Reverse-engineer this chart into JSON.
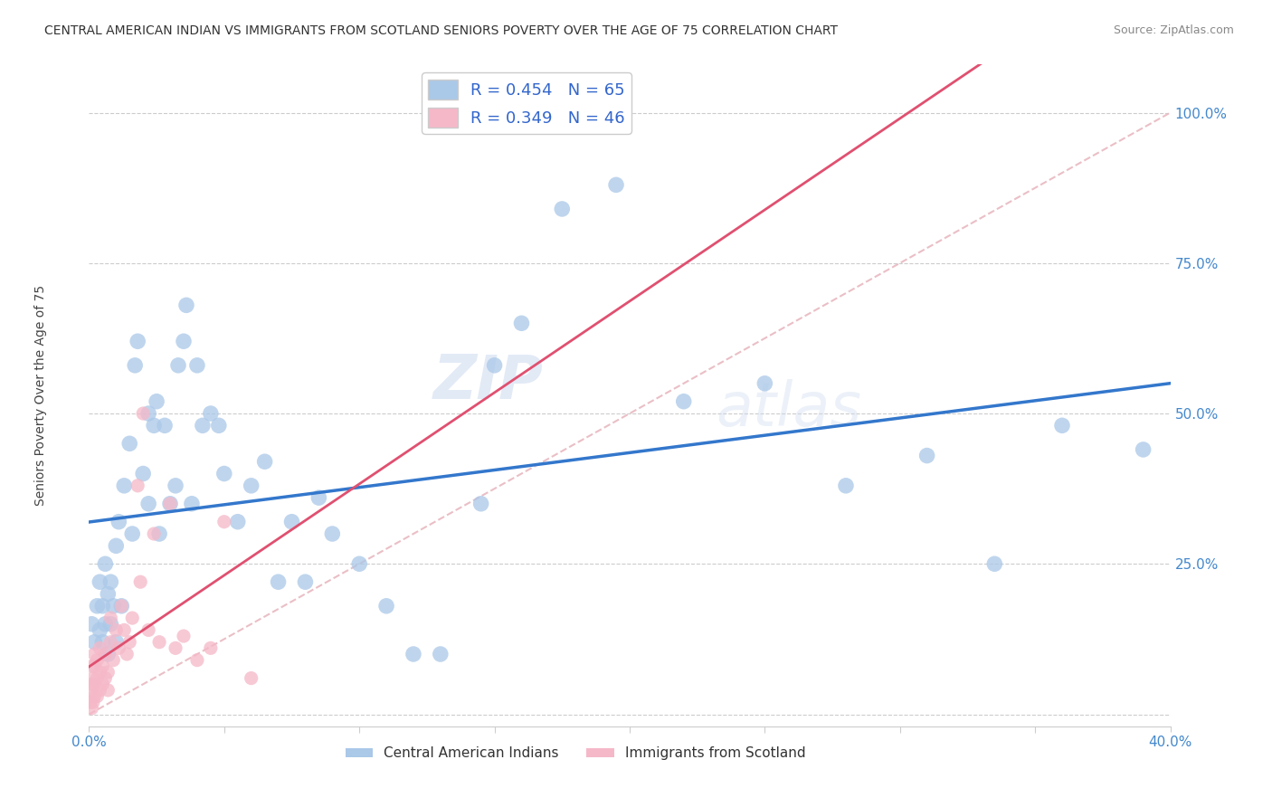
{
  "title": "CENTRAL AMERICAN INDIAN VS IMMIGRANTS FROM SCOTLAND SENIORS POVERTY OVER THE AGE OF 75 CORRELATION CHART",
  "source": "Source: ZipAtlas.com",
  "ylabel": "Seniors Poverty Over the Age of 75",
  "xlim": [
    0.0,
    0.4
  ],
  "ylim": [
    -0.02,
    1.08
  ],
  "yticks": [
    0.0,
    0.25,
    0.5,
    0.75,
    1.0
  ],
  "ytick_labels": [
    "",
    "25.0%",
    "50.0%",
    "75.0%",
    "100.0%"
  ],
  "xticks": [
    0.0,
    0.05,
    0.1,
    0.15,
    0.2,
    0.25,
    0.3,
    0.35,
    0.4
  ],
  "legend1_color": "#aac8e8",
  "legend2_color": "#f5b8c8",
  "line1_color": "#3377cc",
  "line2_color": "#e05070",
  "dot1_color": "#aac8e8",
  "dot2_color": "#f5b8c8",
  "R1": 0.454,
  "N1": 65,
  "R2": 0.349,
  "N2": 46,
  "label1": "Central American Indians",
  "label2": "Immigrants from Scotland",
  "watermark_zip": "ZIP",
  "watermark_atlas": "atlas",
  "diag_color": "#e8b8c0",
  "blue_x": [
    0.001,
    0.002,
    0.003,
    0.004,
    0.004,
    0.005,
    0.005,
    0.006,
    0.006,
    0.007,
    0.007,
    0.008,
    0.008,
    0.009,
    0.01,
    0.01,
    0.011,
    0.012,
    0.013,
    0.015,
    0.016,
    0.017,
    0.018,
    0.02,
    0.022,
    0.022,
    0.024,
    0.025,
    0.026,
    0.028,
    0.03,
    0.032,
    0.033,
    0.035,
    0.036,
    0.038,
    0.04,
    0.042,
    0.045,
    0.048,
    0.05,
    0.055,
    0.06,
    0.065,
    0.07,
    0.075,
    0.08,
    0.085,
    0.09,
    0.1,
    0.11,
    0.12,
    0.13,
    0.145,
    0.15,
    0.16,
    0.175,
    0.195,
    0.22,
    0.25,
    0.28,
    0.31,
    0.335,
    0.36,
    0.39
  ],
  "blue_y": [
    0.15,
    0.12,
    0.18,
    0.14,
    0.22,
    0.18,
    0.12,
    0.15,
    0.25,
    0.1,
    0.2,
    0.15,
    0.22,
    0.18,
    0.12,
    0.28,
    0.32,
    0.18,
    0.38,
    0.45,
    0.3,
    0.58,
    0.62,
    0.4,
    0.5,
    0.35,
    0.48,
    0.52,
    0.3,
    0.48,
    0.35,
    0.38,
    0.58,
    0.62,
    0.68,
    0.35,
    0.58,
    0.48,
    0.5,
    0.48,
    0.4,
    0.32,
    0.38,
    0.42,
    0.22,
    0.32,
    0.22,
    0.36,
    0.3,
    0.25,
    0.18,
    0.1,
    0.1,
    0.35,
    0.58,
    0.65,
    0.84,
    0.88,
    0.52,
    0.55,
    0.38,
    0.43,
    0.25,
    0.48,
    0.44
  ],
  "pink_x": [
    0.0005,
    0.0005,
    0.001,
    0.001,
    0.001,
    0.0015,
    0.0015,
    0.002,
    0.002,
    0.002,
    0.002,
    0.003,
    0.003,
    0.003,
    0.004,
    0.004,
    0.004,
    0.005,
    0.005,
    0.006,
    0.006,
    0.007,
    0.007,
    0.008,
    0.008,
    0.009,
    0.01,
    0.011,
    0.012,
    0.013,
    0.014,
    0.015,
    0.016,
    0.018,
    0.019,
    0.02,
    0.022,
    0.024,
    0.026,
    0.03,
    0.032,
    0.035,
    0.04,
    0.045,
    0.05,
    0.06
  ],
  "pink_y": [
    0.02,
    0.04,
    0.01,
    0.05,
    0.08,
    0.02,
    0.06,
    0.03,
    0.05,
    0.08,
    0.1,
    0.03,
    0.06,
    0.09,
    0.04,
    0.07,
    0.11,
    0.05,
    0.08,
    0.06,
    0.1,
    0.04,
    0.07,
    0.12,
    0.16,
    0.09,
    0.14,
    0.11,
    0.18,
    0.14,
    0.1,
    0.12,
    0.16,
    0.38,
    0.22,
    0.5,
    0.14,
    0.3,
    0.12,
    0.35,
    0.11,
    0.13,
    0.09,
    0.11,
    0.32,
    0.06
  ]
}
